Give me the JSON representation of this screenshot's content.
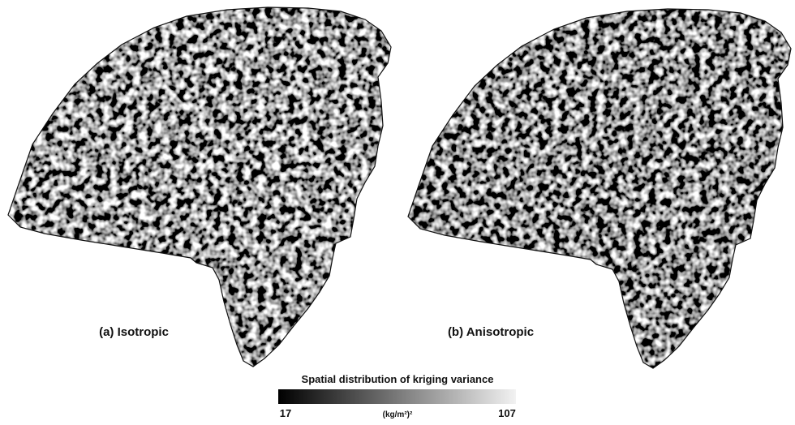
{
  "panels": [
    {
      "label": "(a) Isotropic"
    },
    {
      "label": "(b) Anisotropic"
    }
  ],
  "colorbar": {
    "title": "Spatial distribution of kriging variance",
    "min": 17,
    "max": 107,
    "unit": "(kg/m²)²"
  }
}
